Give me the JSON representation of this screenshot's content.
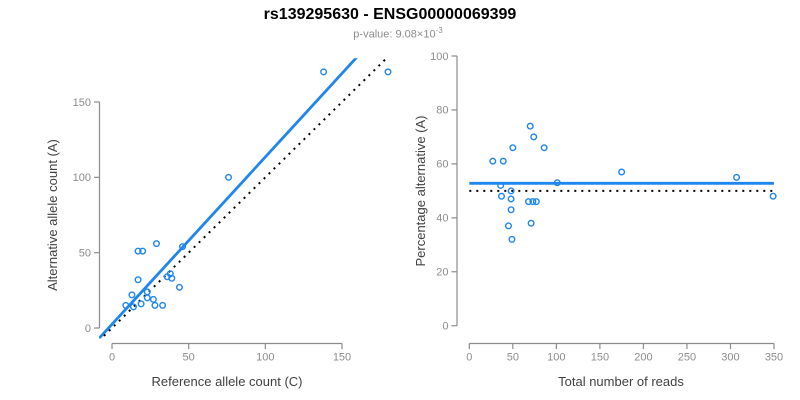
{
  "header": {
    "title": "rs139295630 - ENSG00000069399",
    "subtitle": {
      "text": "p-value: 9.08×10",
      "sup": "-3"
    }
  },
  "colors": {
    "blue": "#1e86ee",
    "black": "#000000",
    "axis": "#8c8c8c",
    "tick_label": "#8c8c8c",
    "axis_title": "#404040",
    "title": "#000000",
    "subtitle": "#8c8c8c"
  },
  "chart_data": [
    {
      "type": "scatter",
      "name": "allele-counts-plot",
      "title": "rs139295630 - ENSG00000069399",
      "subtitle": "p-value: 9.08×10^-3",
      "xlabel": "Reference allele count (C)",
      "ylabel": "Alternative allele count (A)",
      "xticks": [
        0,
        50,
        100,
        150
      ],
      "yticks": [
        0,
        50,
        100,
        150
      ],
      "xlim": [
        -8.5,
        187
      ],
      "ylim": [
        -7,
        179
      ],
      "grid": false,
      "points": [
        [
          9,
          15
        ],
        [
          13,
          22
        ],
        [
          14,
          14
        ],
        [
          17,
          32
        ],
        [
          17,
          51
        ],
        [
          19,
          16
        ],
        [
          20,
          51
        ],
        [
          23,
          20
        ],
        [
          23,
          24
        ],
        [
          27,
          19
        ],
        [
          28,
          15
        ],
        [
          29,
          56
        ],
        [
          33,
          15
        ],
        [
          36,
          34
        ],
        [
          38,
          36
        ],
        [
          39,
          33
        ],
        [
          44,
          27
        ],
        [
          46,
          54
        ],
        [
          76,
          100
        ],
        [
          138,
          170
        ],
        [
          180,
          170
        ]
      ],
      "lines": [
        {
          "name": "regression-line",
          "kind": "abline",
          "slope": 1.11,
          "intercept": 2.5,
          "color_key": "blue",
          "dash": "solid"
        },
        {
          "name": "identity-line",
          "kind": "abline",
          "slope": 1,
          "intercept": 0,
          "color_key": "black",
          "dash": "dotted"
        }
      ]
    },
    {
      "type": "scatter",
      "name": "percentage-alternative-plot",
      "title": "",
      "subtitle": "",
      "xlabel": "Total number of reads",
      "ylabel": "Percentage alternative (A)",
      "xticks": [
        0,
        50,
        100,
        150,
        200,
        250,
        300,
        350
      ],
      "yticks": [
        0,
        20,
        40,
        60,
        80,
        100
      ],
      "xlim": [
        -14,
        364
      ],
      "ylim": [
        -4,
        104
      ],
      "grid": false,
      "points": [
        [
          27,
          61
        ],
        [
          36,
          52
        ],
        [
          37,
          48
        ],
        [
          39,
          61
        ],
        [
          45,
          37
        ],
        [
          48,
          43
        ],
        [
          48,
          47
        ],
        [
          48,
          50
        ],
        [
          49,
          32
        ],
        [
          50,
          66
        ],
        [
          68,
          46
        ],
        [
          70,
          74
        ],
        [
          71,
          38
        ],
        [
          73,
          46
        ],
        [
          74,
          70
        ],
        [
          77,
          46
        ],
        [
          86,
          66
        ],
        [
          101,
          53
        ],
        [
          175,
          57
        ],
        [
          307,
          55
        ],
        [
          349,
          48
        ]
      ],
      "lines": [
        {
          "name": "mean-percentage-line",
          "kind": "hline",
          "y": 52.8,
          "x0": 0,
          "x1": 350,
          "color_key": "blue",
          "dash": "solid"
        },
        {
          "name": "fifty-percent-line",
          "kind": "hline",
          "y": 50,
          "x0": 0,
          "x1": 350,
          "color_key": "black",
          "dash": "dotted"
        }
      ]
    }
  ]
}
